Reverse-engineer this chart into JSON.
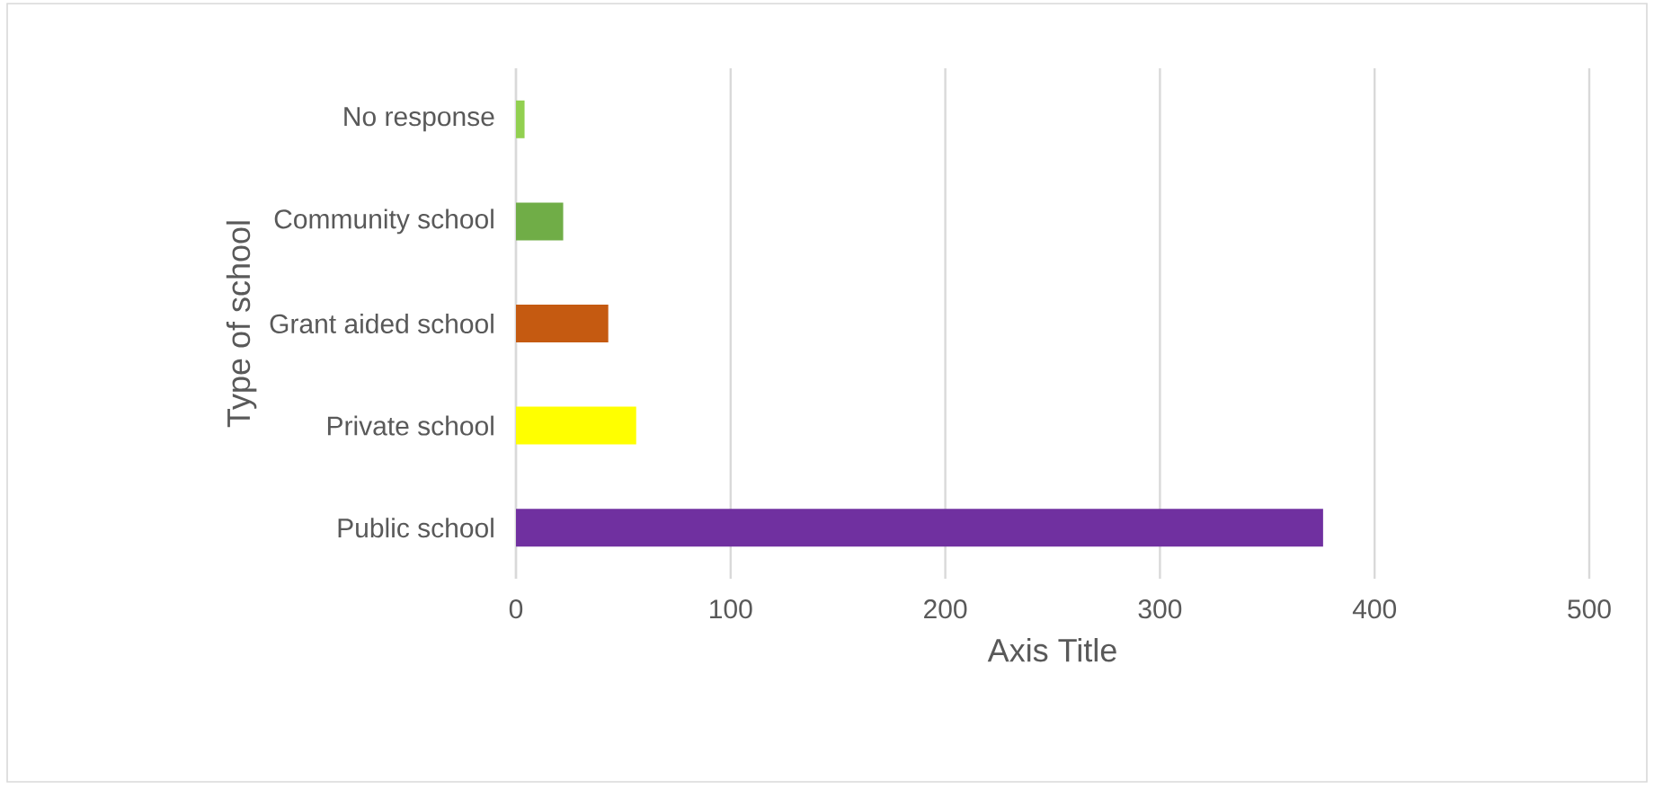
{
  "chart_data": {
    "type": "bar",
    "orientation": "horizontal",
    "categories": [
      "No response",
      "Community school",
      "Grant aided school",
      "Private school",
      "Public school"
    ],
    "values": [
      4,
      22,
      43,
      56,
      376
    ],
    "colors": [
      "#92d050",
      "#70ad47",
      "#c55a11",
      "#ffff00",
      "#7030a0"
    ],
    "xlabel": "Axis Title",
    "ylabel": "Type of school",
    "xlim": [
      0,
      500
    ],
    "xticks": [
      0,
      100,
      200,
      300,
      400,
      500
    ],
    "grid": "x"
  }
}
